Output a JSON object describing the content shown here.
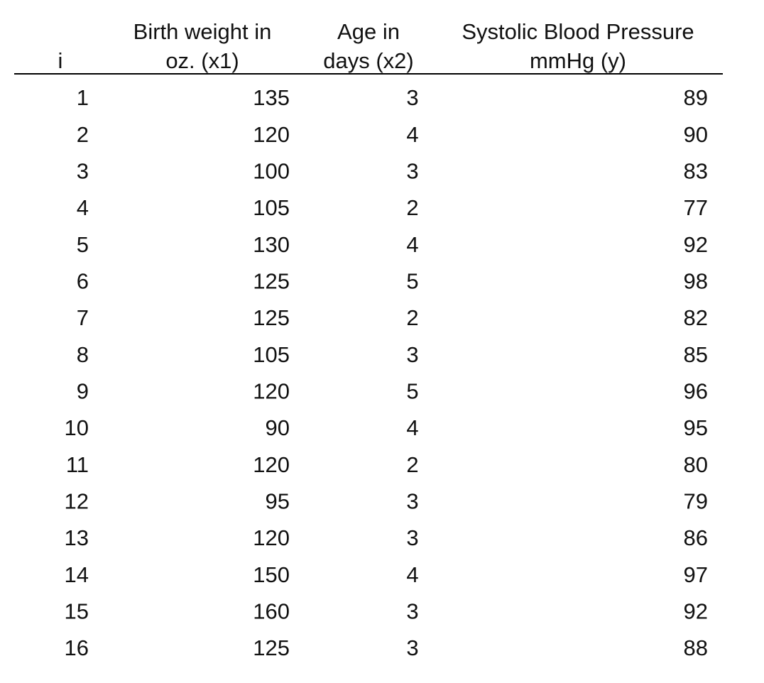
{
  "table": {
    "headers": [
      [
        "i"
      ],
      [
        "Birth weight in",
        "oz. (x1)"
      ],
      [
        "Age in",
        "days (x2)"
      ],
      [
        "Systolic Blood Pressure",
        "mmHg (y)"
      ]
    ],
    "rows": [
      [
        1,
        135,
        3,
        89
      ],
      [
        2,
        120,
        4,
        90
      ],
      [
        3,
        100,
        3,
        83
      ],
      [
        4,
        105,
        2,
        77
      ],
      [
        5,
        130,
        4,
        92
      ],
      [
        6,
        125,
        5,
        98
      ],
      [
        7,
        125,
        2,
        82
      ],
      [
        8,
        105,
        3,
        85
      ],
      [
        9,
        120,
        5,
        96
      ],
      [
        10,
        90,
        4,
        95
      ],
      [
        11,
        120,
        2,
        80
      ],
      [
        12,
        95,
        3,
        79
      ],
      [
        13,
        120,
        3,
        86
      ],
      [
        14,
        150,
        4,
        97
      ],
      [
        15,
        160,
        3,
        92
      ],
      [
        16,
        125,
        3,
        88
      ]
    ]
  }
}
